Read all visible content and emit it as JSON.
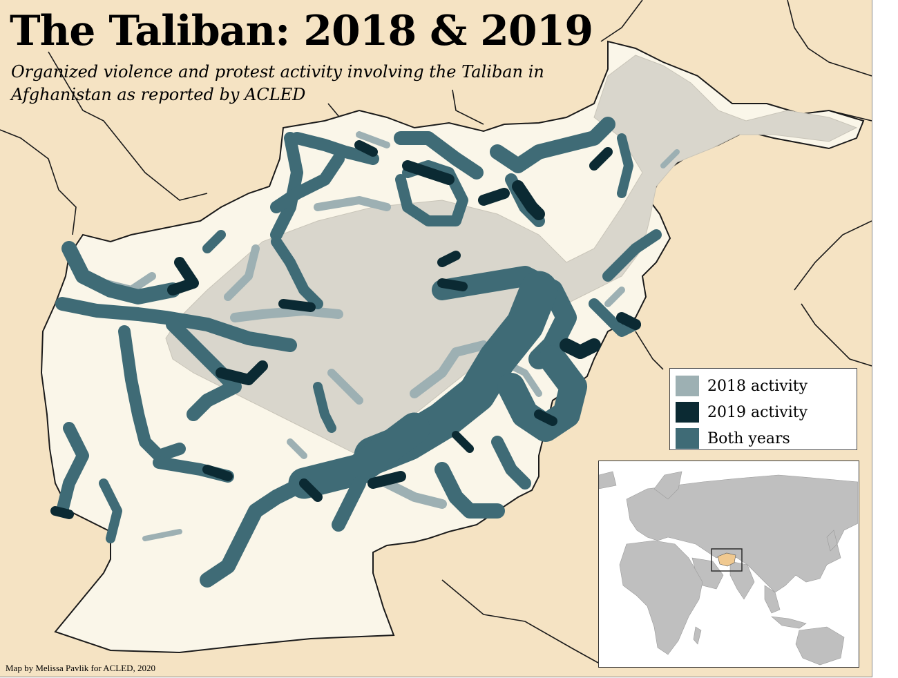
{
  "map": {
    "title": "The Taliban: 2018 & 2019",
    "subtitle": "Organized violence and protest activity involving the Taliban in Afghanistan as reported by ACLED",
    "credit": "Map by Melissa Pavlik for ACLED, 2020"
  },
  "legend": {
    "items": [
      {
        "label": "2018 activity",
        "color": "#9db0b3"
      },
      {
        "label": "2019 activity",
        "color": "#0b2a33"
      },
      {
        "label": "Both years",
        "color": "#3f6b76"
      }
    ]
  },
  "colors": {
    "background": "#f5e3c3",
    "country_fill": "#faf6e9",
    "terrain": "#d9d6cc",
    "borders": "#1a1a1a",
    "inset_land": "#bfbfbf",
    "inset_highlight": "#f0c990"
  },
  "inset": {
    "icon": "world-locator-map",
    "highlight": "Afghanistan"
  }
}
